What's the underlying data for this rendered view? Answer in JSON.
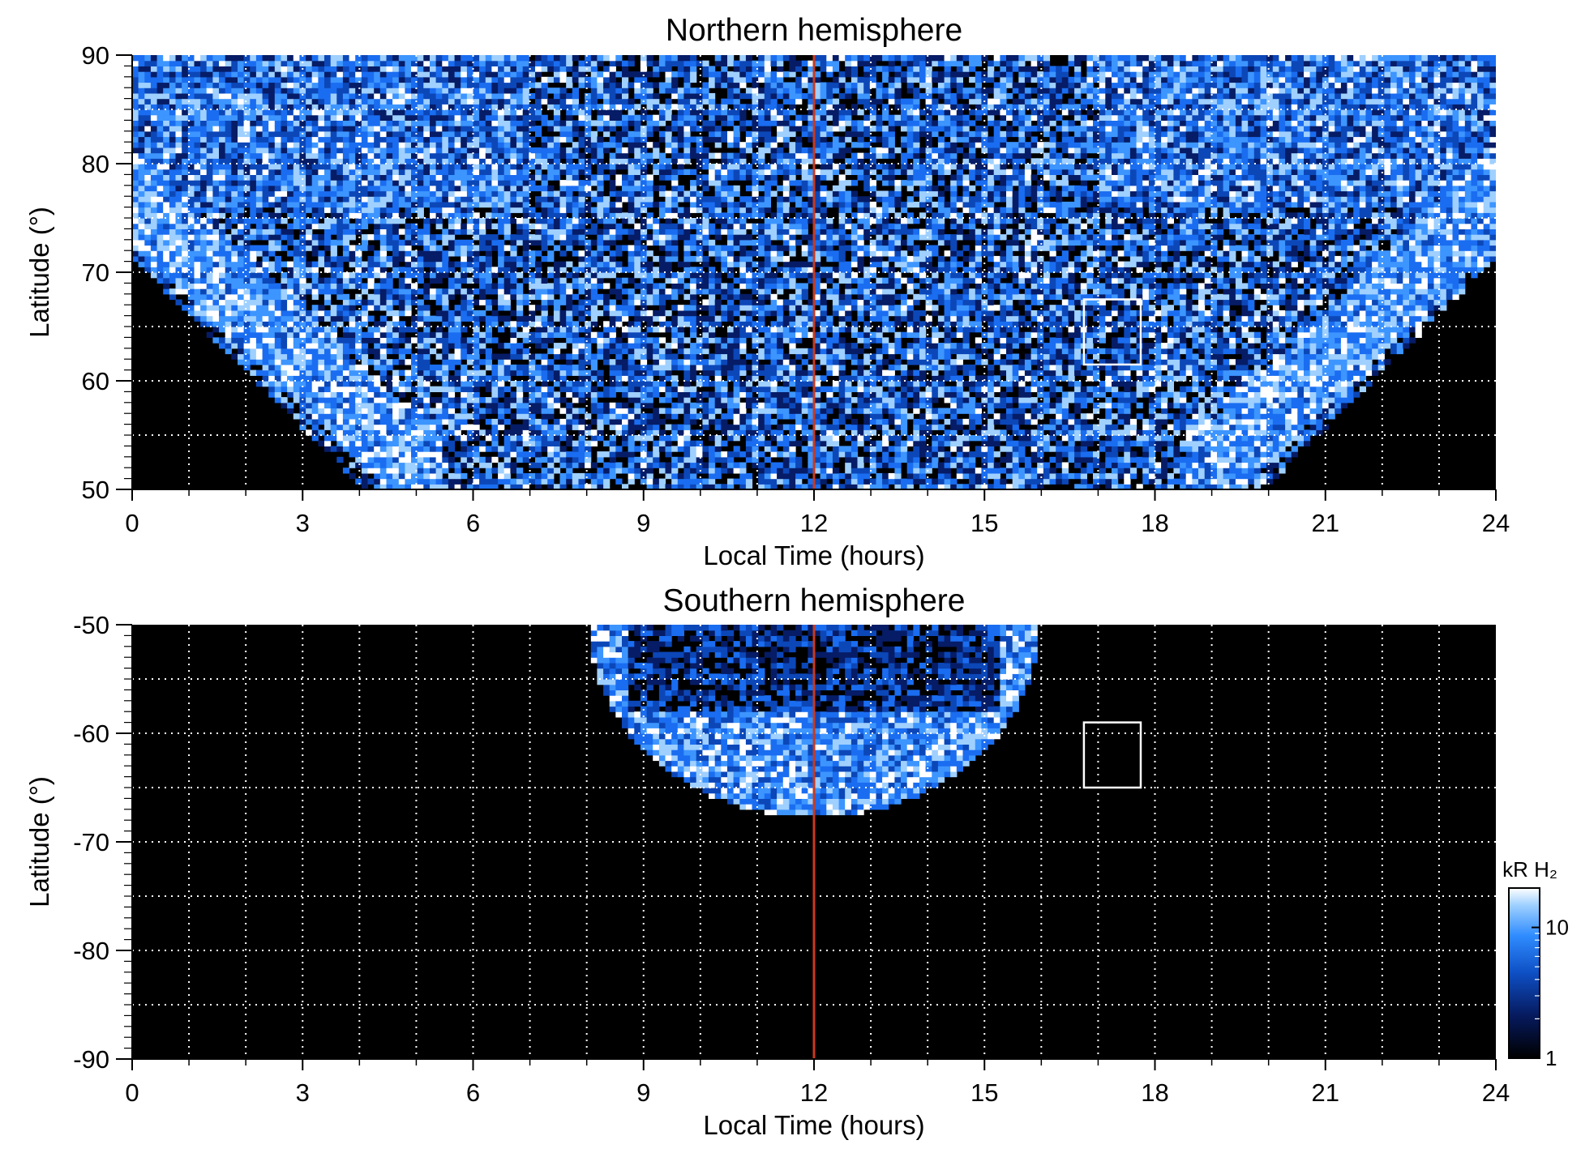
{
  "colors": {
    "background": "#000000",
    "emission_dim": "#0a3a9e",
    "emission_mid": "#1f7cff",
    "emission_bright": "#9fd0ff",
    "emission_peak": "#ffffff",
    "noon_line": "#c83a1e",
    "grid": "#ffffff",
    "box": "#ffffff"
  },
  "chart_data": [
    {
      "type": "heatmap",
      "title": "Northern hemisphere",
      "xlabel": "Local Time (hours)",
      "ylabel": "Latitude (°)",
      "xlim": [
        0,
        24
      ],
      "ylim": [
        50,
        90
      ],
      "x_ticks": [
        "0",
        "3",
        "6",
        "9",
        "12",
        "15",
        "18",
        "21",
        "24"
      ],
      "x_tick_values": [
        0,
        3,
        6,
        9,
        12,
        15,
        18,
        21,
        24
      ],
      "y_ticks": [
        "50",
        "60",
        "70",
        "80",
        "90"
      ],
      "y_tick_values": [
        50,
        60,
        70,
        80,
        90
      ],
      "x_grid": [
        1,
        2,
        3,
        4,
        5,
        6,
        7,
        8,
        9,
        10,
        11,
        12,
        13,
        14,
        15,
        16,
        17,
        18,
        19,
        20,
        21,
        22,
        23
      ],
      "y_grid": [
        55,
        60,
        65,
        70,
        75,
        80,
        85
      ],
      "grid": true,
      "noon_line_x": 12,
      "box": {
        "x": [
          16.75,
          17.75
        ],
        "y": [
          61.5,
          67.5
        ]
      },
      "coverage": {
        "outer_boundary_lat_at_lt": [
          [
            0,
            69.5
          ],
          [
            2,
            65
          ],
          [
            3.5,
            56
          ],
          [
            4,
            50
          ],
          [
            19.6,
            50
          ],
          [
            20.5,
            57
          ],
          [
            22,
            65
          ],
          [
            24,
            70
          ]
        ],
        "auroral_oval": [
          {
            "x": 0,
            "y": 75
          },
          {
            "x": 3,
            "y": 68
          },
          {
            "x": 4.5,
            "y": 60
          },
          {
            "x": 5,
            "y": 52
          },
          {
            "x": 19,
            "y": 52
          },
          {
            "x": 19.5,
            "y": 60
          },
          {
            "x": 21,
            "y": 68
          },
          {
            "x": 24,
            "y": 75
          }
        ]
      },
      "colorscale": "log",
      "colorbar_range": [
        1,
        20
      ]
    },
    {
      "type": "heatmap",
      "title": "Southern hemisphere",
      "xlabel": "Local Time (hours)",
      "ylabel": "Latitude (°)",
      "xlim": [
        0,
        24
      ],
      "ylim": [
        -90,
        -50
      ],
      "x_ticks": [
        "0",
        "3",
        "6",
        "9",
        "12",
        "15",
        "18",
        "21",
        "24"
      ],
      "x_tick_values": [
        0,
        3,
        6,
        9,
        12,
        15,
        18,
        21,
        24
      ],
      "y_ticks": [
        "-90",
        "-80",
        "-70",
        "-60",
        "-50"
      ],
      "y_tick_values": [
        -90,
        -80,
        -70,
        -60,
        -50
      ],
      "x_grid": [
        1,
        2,
        3,
        4,
        5,
        6,
        7,
        8,
        9,
        10,
        11,
        12,
        13,
        14,
        15,
        16,
        17,
        18,
        19,
        20,
        21,
        22,
        23
      ],
      "y_grid": [
        -85,
        -80,
        -75,
        -70,
        -65,
        -60,
        -55
      ],
      "grid": true,
      "noon_line_x": 12,
      "box": {
        "x": [
          16.75,
          17.75
        ],
        "y": [
          -65,
          -59
        ]
      },
      "coverage": {
        "region_lt_range": [
          7.9,
          15.9
        ],
        "region_edge_lat_at_lt": [
          [
            7.9,
            -50
          ],
          [
            9,
            -58
          ],
          [
            10.5,
            -64.5
          ],
          [
            12,
            -67.5
          ],
          [
            13.5,
            -65
          ],
          [
            15,
            -58
          ],
          [
            15.9,
            -50
          ]
        ],
        "dark_band_lat_range": [
          -58,
          -50
        ]
      },
      "colorscale": "log",
      "colorbar_range": [
        1,
        20
      ]
    }
  ],
  "colorbar": {
    "title": "kR H₂",
    "tick_labels": [
      "10",
      "1"
    ],
    "tick_values": [
      10,
      1
    ],
    "range": [
      1,
      20
    ],
    "scale": "log"
  }
}
